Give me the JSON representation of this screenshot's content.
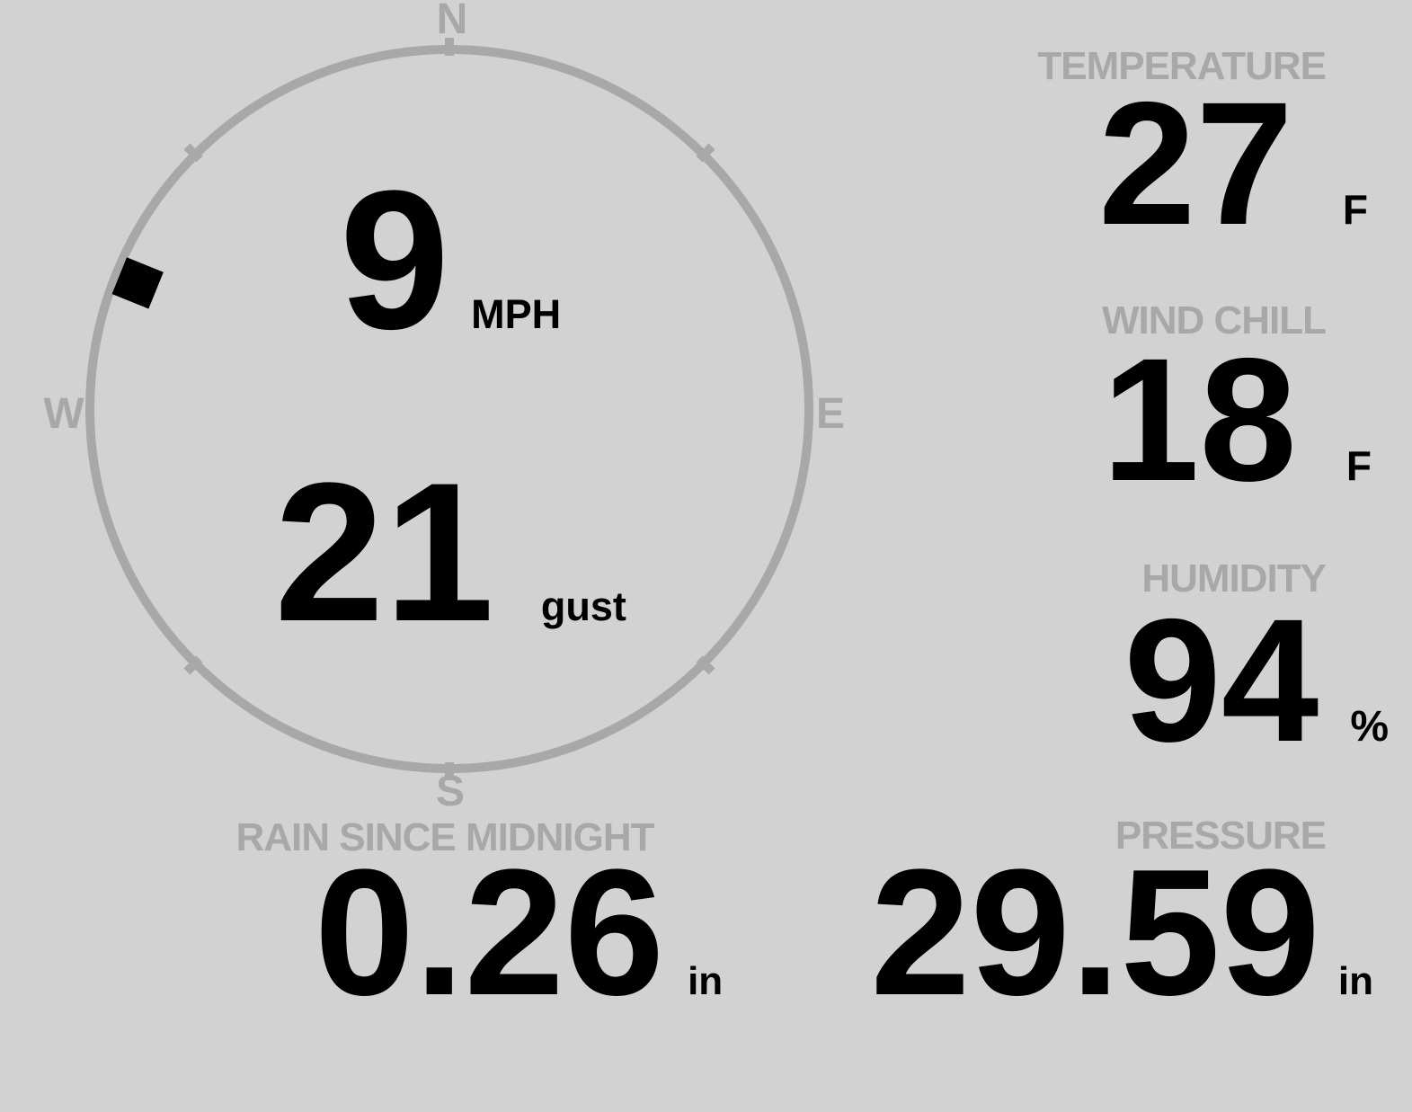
{
  "theme": {
    "background": "#d2d2d2",
    "muted": "#a8a8a8",
    "ink": "#000000"
  },
  "wind": {
    "speed_value": "9",
    "speed_unit": "MPH",
    "gust_value": "21",
    "gust_unit": "gust",
    "direction_degrees": 292,
    "cardinals": {
      "north": "N",
      "east": "E",
      "south": "S",
      "west": "W"
    }
  },
  "stats": {
    "temperature": {
      "label": "TEMPERATURE",
      "value": "27",
      "unit": "F"
    },
    "wind_chill": {
      "label": "WIND CHILL",
      "value": "18",
      "unit": "F"
    },
    "humidity": {
      "label": "HUMIDITY",
      "value": "94",
      "unit": "%"
    },
    "rain_since_midnight": {
      "label": "RAIN SINCE MIDNIGHT",
      "value": "0.26",
      "unit": "in"
    },
    "pressure": {
      "label": "PRESSURE",
      "value": "29.59",
      "unit": "in"
    }
  }
}
